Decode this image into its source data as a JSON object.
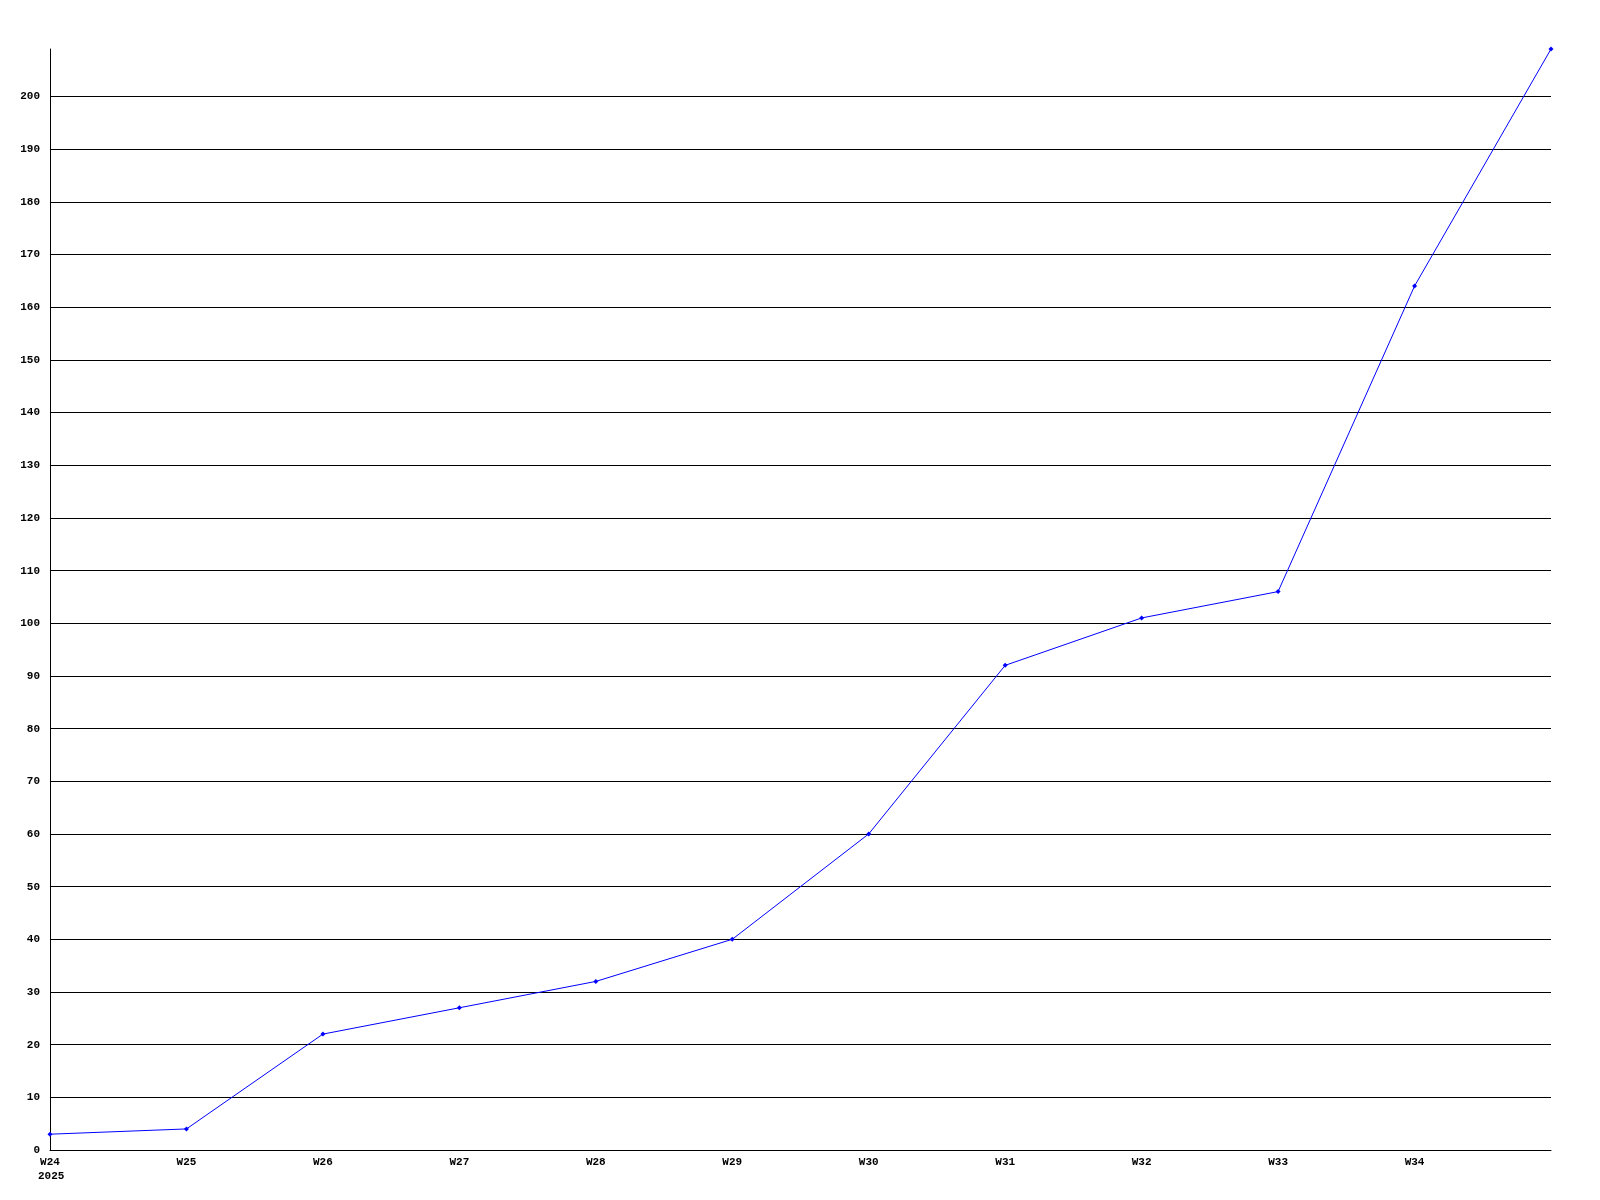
{
  "chart_data": {
    "type": "line",
    "categories": [
      "W24",
      "W25",
      "W26",
      "W27",
      "W28",
      "W29",
      "W30",
      "W31",
      "W32",
      "W33",
      "W34",
      null
    ],
    "series": [
      {
        "color": "#0000ff",
        "values": [
          3,
          4,
          22,
          27,
          32,
          40,
          60,
          92,
          101,
          106,
          164,
          209
        ]
      }
    ],
    "ylim": [
      0,
      209
    ],
    "yticks": [
      0,
      10,
      20,
      30,
      40,
      50,
      60,
      70,
      80,
      90,
      100,
      110,
      120,
      130,
      140,
      150,
      160,
      170,
      180,
      190,
      200
    ],
    "grid": "y",
    "marker": "diamond",
    "line_style": "solid",
    "annotations": [
      "2025"
    ]
  }
}
